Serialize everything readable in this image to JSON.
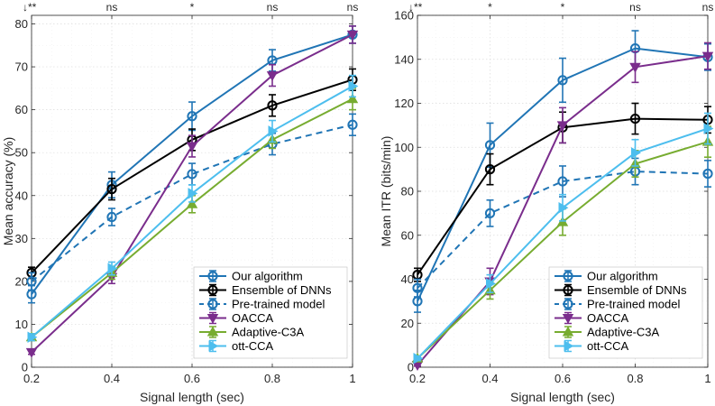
{
  "chart_data": [
    {
      "type": "line",
      "xlabel": "Signal length (sec)",
      "ylabel": "Mean accuracy (%)",
      "x": [
        0.2,
        0.4,
        0.6,
        0.8,
        1.0
      ],
      "x_ticks": [
        "0.2",
        "0.4",
        "0.6",
        "0.8",
        "1"
      ],
      "y_ticks": [
        "0",
        "10",
        "20",
        "30",
        "40",
        "50",
        "60",
        "70",
        "80"
      ],
      "xlim": [
        0.2,
        1.0
      ],
      "ylim": [
        0,
        82
      ],
      "grid": true,
      "legend_position": "bottom-right",
      "significance": [
        "↓**",
        "ns",
        "*",
        "ns",
        "ns"
      ],
      "series": [
        {
          "name": "Our algorithm",
          "values": [
            17,
            42.5,
            58.5,
            71.5,
            77.5
          ],
          "errors": [
            2,
            3,
            3.3,
            2.5,
            2
          ],
          "color": "#2075b5",
          "style": "solid",
          "marker": "circle"
        },
        {
          "name": "Ensemble of DNNs",
          "values": [
            22,
            41.5,
            53,
            61,
            67
          ],
          "errors": [
            1.3,
            2.5,
            2.5,
            2.5,
            2.5
          ],
          "color": "#000000",
          "style": "solid",
          "marker": "circle"
        },
        {
          "name": "Pre-trained model",
          "values": [
            20,
            35,
            45,
            52,
            56.5
          ],
          "errors": [
            2,
            2,
            2.5,
            2.5,
            2.5
          ],
          "color": "#2075b5",
          "style": "dashed",
          "marker": "circle"
        },
        {
          "name": "OACCA",
          "values": [
            3.5,
            21,
            51.5,
            68,
            77.5
          ],
          "errors": [
            0.5,
            1.5,
            2.5,
            2.5,
            2
          ],
          "color": "#7a2d8c",
          "style": "solid",
          "marker": "triangle-down"
        },
        {
          "name": "Adaptive-C3A",
          "values": [
            7,
            22,
            38,
            53,
            62.5
          ],
          "errors": [
            0.8,
            1.5,
            2,
            2,
            2.5
          ],
          "color": "#77ac30",
          "style": "solid",
          "marker": "triangle-up"
        },
        {
          "name": "ott-CCA",
          "values": [
            7,
            23,
            40.5,
            55,
            65.5
          ],
          "errors": [
            0.8,
            1.5,
            2,
            2.5,
            2.5
          ],
          "color": "#4dbeee",
          "style": "solid",
          "marker": "triangle-right"
        }
      ]
    },
    {
      "type": "line",
      "xlabel": "Signal length (sec)",
      "ylabel": "Mean ITR (bits/min)",
      "x": [
        0.2,
        0.4,
        0.6,
        0.8,
        1.0
      ],
      "x_ticks": [
        "0.2",
        "0.4",
        "0.6",
        "0.8",
        "1"
      ],
      "y_ticks": [
        "0",
        "20",
        "40",
        "60",
        "80",
        "100",
        "120",
        "140",
        "160"
      ],
      "xlim": [
        0.2,
        1.0
      ],
      "ylim": [
        0,
        160
      ],
      "grid": true,
      "legend_position": "bottom-right",
      "significance": [
        "↓**",
        "*",
        "*",
        "ns",
        "ns"
      ],
      "series": [
        {
          "name": "Our algorithm",
          "values": [
            30,
            101,
            130.5,
            145,
            141
          ],
          "errors": [
            5,
            10,
            10,
            8,
            6
          ],
          "color": "#2075b5",
          "style": "solid",
          "marker": "circle"
        },
        {
          "name": "Ensemble of DNNs",
          "values": [
            42,
            90,
            109,
            113,
            112.5
          ],
          "errors": [
            3,
            7,
            7,
            7,
            6
          ],
          "color": "#000000",
          "style": "solid",
          "marker": "circle"
        },
        {
          "name": "Pre-trained model",
          "values": [
            36,
            70,
            84.5,
            89,
            88
          ],
          "errors": [
            4,
            6,
            7,
            6,
            6
          ],
          "color": "#2075b5",
          "style": "dashed",
          "marker": "circle"
        },
        {
          "name": "OACCA",
          "values": [
            1,
            39,
            110,
            136.5,
            141.5
          ],
          "errors": [
            0.5,
            6,
            8,
            7,
            6
          ],
          "color": "#7a2d8c",
          "style": "solid",
          "marker": "triangle-down"
        },
        {
          "name": "Adaptive-C3A",
          "values": [
            4,
            35,
            66,
            92.5,
            102.5
          ],
          "errors": [
            1,
            4,
            6,
            6,
            7
          ],
          "color": "#77ac30",
          "style": "solid",
          "marker": "triangle-up"
        },
        {
          "name": "ott-CCA",
          "values": [
            4,
            38,
            72.5,
            97.5,
            108.5
          ],
          "errors": [
            1,
            4,
            6,
            6,
            7
          ],
          "color": "#4dbeee",
          "style": "solid",
          "marker": "triangle-right"
        }
      ]
    }
  ]
}
